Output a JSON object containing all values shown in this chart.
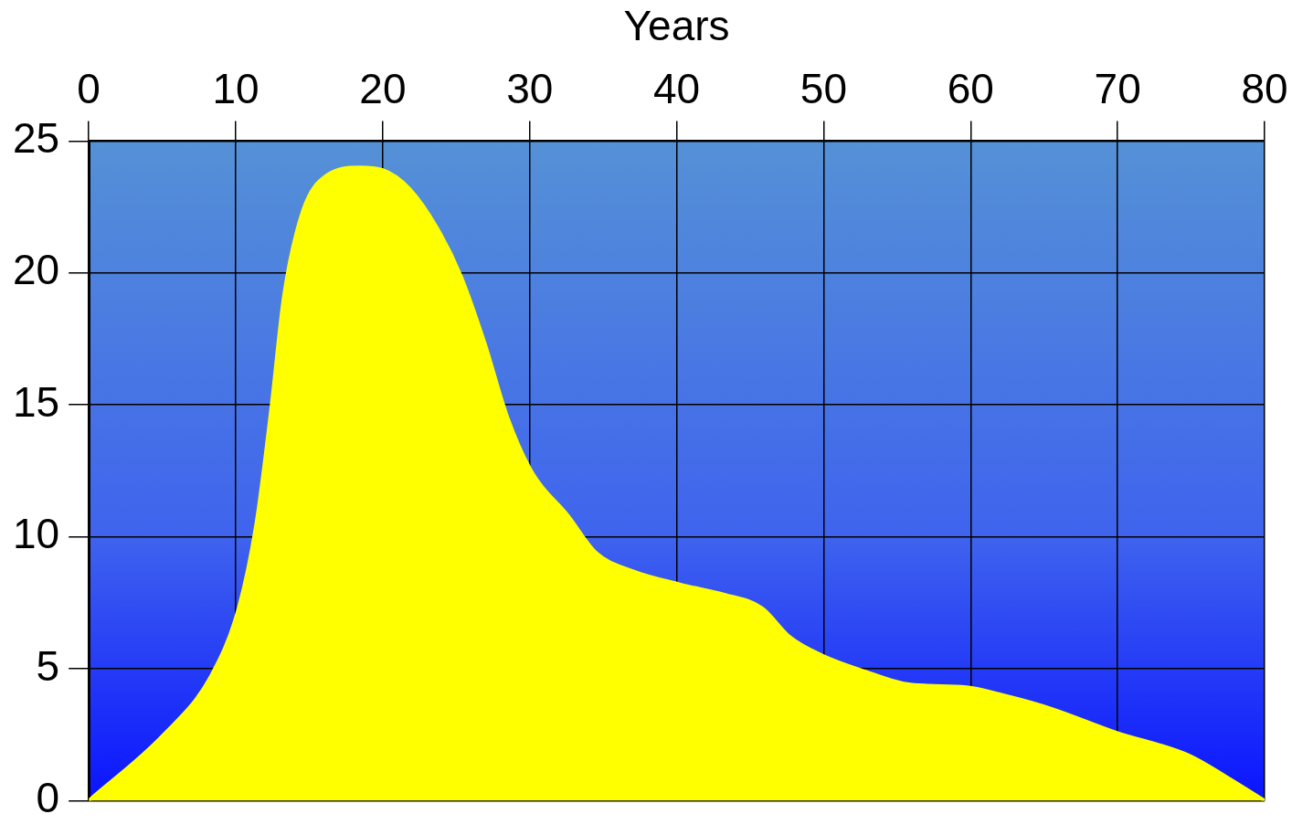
{
  "chart_data": {
    "type": "area",
    "xlabel": "Years",
    "x": [
      0,
      5.1,
      8.3,
      10.2,
      11.4,
      12.4,
      13.3,
      14.6,
      16.2,
      18.4,
      20,
      21.8,
      23.7,
      25.3,
      26.9,
      28.5,
      30.2,
      32.6,
      34.5,
      37,
      40.2,
      43.3,
      45.8,
      47.7,
      49.9,
      52.8,
      55.9,
      59.7,
      62.2,
      65.4,
      69.8,
      74.9,
      77.4,
      80
    ],
    "values": [
      0,
      2.5,
      4.7,
      7.3,
      10.5,
      14.8,
      19.2,
      22.4,
      23.7,
      24,
      23.9,
      23.2,
      21.7,
      19.9,
      17.4,
      14.5,
      12.4,
      10.8,
      9.4,
      8.7,
      8.2,
      7.8,
      7.3,
      6.2,
      5.5,
      4.9,
      4.4,
      4.3,
      4,
      3.5,
      2.6,
      1.7,
      0.9,
      0
    ],
    "color": "#ffff00",
    "xlim": [
      0,
      80
    ],
    "xticks": [
      0,
      10,
      20,
      30,
      40,
      50,
      60,
      70,
      80
    ],
    "ylim": [
      0,
      25
    ],
    "yticks": [
      0,
      5,
      10,
      15,
      20,
      25
    ],
    "grid": true
  }
}
